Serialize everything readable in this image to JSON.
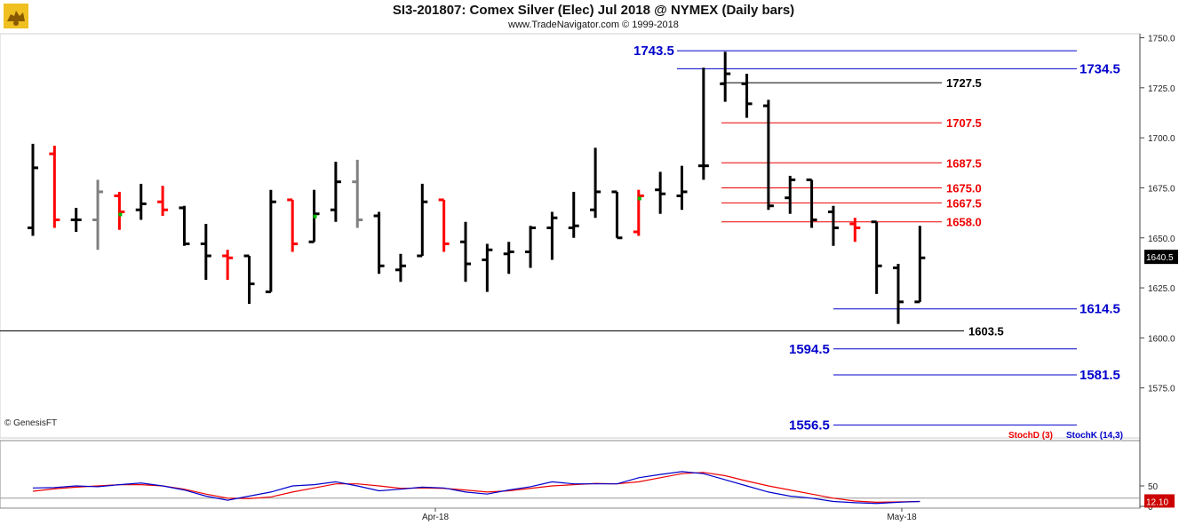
{
  "header": {
    "title": "SI3-201807:  Comex Silver (Elec) Jul 2018 @ NYMEX  (Daily bars)",
    "subtitle": "www.TradeNavigator.com © 1999-2018",
    "logo_icon": "bull-logo-icon"
  },
  "chart_data": [
    {
      "type": "ohlc",
      "ylim": [
        1550,
        1752
      ],
      "y_ticks": [
        "1750.0",
        "1725.0",
        "1700.0",
        "1675.0",
        "1650.0",
        "1625.0",
        "1600.0",
        "1575.0"
      ],
      "x_labels": [
        "Apr-18",
        "May-18"
      ],
      "last_price": "1640.5",
      "credit": "© GenesisFT",
      "colors": {
        "up": "#000000",
        "down": "#ff0000",
        "neutral": "#808080",
        "signal": "#00bb00"
      },
      "bars": [
        {
          "o": 1655,
          "h": 1697,
          "l": 1651,
          "c": 1685,
          "color": "#000000"
        },
        {
          "o": 1692,
          "h": 1696,
          "l": 1655,
          "c": 1659,
          "color": "#ff0000"
        },
        {
          "o": 1659,
          "h": 1665,
          "l": 1653,
          "c": 1659,
          "color": "#000000"
        },
        {
          "o": 1659,
          "h": 1679,
          "l": 1644,
          "c": 1673,
          "color": "#808080"
        },
        {
          "o": 1671,
          "h": 1673,
          "l": 1654,
          "c": 1663,
          "color": "#ff0000",
          "mark": "#00bb00"
        },
        {
          "o": 1664,
          "h": 1677,
          "l": 1659,
          "c": 1667,
          "color": "#000000"
        },
        {
          "o": 1668,
          "h": 1676,
          "l": 1661,
          "c": 1664,
          "color": "#ff0000"
        },
        {
          "o": 1665,
          "h": 1666,
          "l": 1646,
          "c": 1647,
          "color": "#000000"
        },
        {
          "o": 1647,
          "h": 1657,
          "l": 1629,
          "c": 1641,
          "color": "#000000"
        },
        {
          "o": 1641,
          "h": 1644,
          "l": 1629,
          "c": 1640,
          "color": "#ff0000"
        },
        {
          "o": 1641,
          "h": 1641,
          "l": 1617,
          "c": 1627,
          "color": "#000000"
        },
        {
          "o": 1623,
          "h": 1674,
          "l": 1623,
          "c": 1668,
          "color": "#000000"
        },
        {
          "o": 1669,
          "h": 1669,
          "l": 1643,
          "c": 1647,
          "color": "#ff0000"
        },
        {
          "o": 1648,
          "h": 1674,
          "l": 1648,
          "c": 1662,
          "color": "#000000",
          "mark": "#00bb00"
        },
        {
          "o": 1664,
          "h": 1688,
          "l": 1658,
          "c": 1678,
          "color": "#000000"
        },
        {
          "o": 1678,
          "h": 1689,
          "l": 1655,
          "c": 1659,
          "color": "#808080"
        },
        {
          "o": 1661,
          "h": 1663,
          "l": 1632,
          "c": 1636,
          "color": "#000000"
        },
        {
          "o": 1634,
          "h": 1642,
          "l": 1628,
          "c": 1636,
          "color": "#000000"
        },
        {
          "o": 1641,
          "h": 1677,
          "l": 1641,
          "c": 1668,
          "color": "#000000"
        },
        {
          "o": 1669,
          "h": 1669,
          "l": 1643,
          "c": 1647,
          "color": "#ff0000"
        },
        {
          "o": 1648,
          "h": 1658,
          "l": 1628,
          "c": 1637,
          "color": "#000000"
        },
        {
          "o": 1639,
          "h": 1647,
          "l": 1623,
          "c": 1644,
          "color": "#000000"
        },
        {
          "o": 1642,
          "h": 1648,
          "l": 1632,
          "c": 1643,
          "color": "#000000"
        },
        {
          "o": 1643,
          "h": 1656,
          "l": 1635,
          "c": 1655,
          "color": "#000000"
        },
        {
          "o": 1655,
          "h": 1663,
          "l": 1639,
          "c": 1660,
          "color": "#000000"
        },
        {
          "o": 1655,
          "h": 1673,
          "l": 1650,
          "c": 1656,
          "color": "#000000"
        },
        {
          "o": 1664,
          "h": 1695,
          "l": 1660,
          "c": 1673,
          "color": "#000000"
        },
        {
          "o": 1673,
          "h": 1673,
          "l": 1650,
          "c": 1650,
          "color": "#000000"
        },
        {
          "o": 1653,
          "h": 1674,
          "l": 1651,
          "c": 1671,
          "color": "#ff0000",
          "mark": "#00bb00"
        },
        {
          "o": 1674,
          "h": 1683,
          "l": 1662,
          "c": 1672,
          "color": "#000000"
        },
        {
          "o": 1671,
          "h": 1686,
          "l": 1664,
          "c": 1673,
          "color": "#000000"
        },
        {
          "o": 1686,
          "h": 1735,
          "l": 1679,
          "c": 1686,
          "color": "#000000"
        },
        {
          "o": 1727,
          "h": 1743,
          "l": 1718,
          "c": 1732,
          "color": "#000000"
        },
        {
          "o": 1727,
          "h": 1732,
          "l": 1710,
          "c": 1717,
          "color": "#000000"
        },
        {
          "o": 1716,
          "h": 1719,
          "l": 1664,
          "c": 1666,
          "color": "#000000"
        },
        {
          "o": 1670,
          "h": 1681,
          "l": 1662,
          "c": 1679,
          "color": "#000000"
        },
        {
          "o": 1679,
          "h": 1679,
          "l": 1655,
          "c": 1659,
          "color": "#000000"
        },
        {
          "o": 1663,
          "h": 1666,
          "l": 1646,
          "c": 1655,
          "color": "#000000"
        },
        {
          "o": 1657,
          "h": 1660,
          "l": 1648,
          "c": 1655,
          "color": "#ff0000"
        },
        {
          "o": 1658,
          "h": 1658,
          "l": 1622,
          "c": 1636,
          "color": "#000000"
        },
        {
          "o": 1635,
          "h": 1637,
          "l": 1607,
          "c": 1618,
          "color": "#000000"
        },
        {
          "o": 1618,
          "h": 1656,
          "l": 1618,
          "c": 1640,
          "color": "#000000"
        }
      ],
      "levels": [
        {
          "value": 1743.5,
          "label": "1743.5",
          "color": "#0000cc",
          "side": "left"
        },
        {
          "value": 1734.5,
          "label": "1734.5",
          "color": "#0000cc",
          "side": "right"
        },
        {
          "value": 1727.5,
          "label": "1727.5",
          "color": "#000000",
          "side": "mid"
        },
        {
          "value": 1707.5,
          "label": "1707.5",
          "color": "#ee0000",
          "side": "mid"
        },
        {
          "value": 1687.5,
          "label": "1687.5",
          "color": "#ee0000",
          "side": "mid"
        },
        {
          "value": 1675.0,
          "label": "1675.0",
          "color": "#ee0000",
          "side": "mid"
        },
        {
          "value": 1667.5,
          "label": "1667.5",
          "color": "#ee0000",
          "side": "mid"
        },
        {
          "value": 1658.0,
          "label": "1658.0",
          "color": "#ee0000",
          "side": "mid"
        },
        {
          "value": 1614.5,
          "label": "1614.5",
          "color": "#0000cc",
          "side": "right"
        },
        {
          "value": 1603.5,
          "label": "1603.5",
          "color": "#000000",
          "side": "mid2"
        },
        {
          "value": 1594.5,
          "label": "1594.5",
          "color": "#0000cc",
          "side": "left2"
        },
        {
          "value": 1581.5,
          "label": "1581.5",
          "color": "#0000cc",
          "side": "right"
        },
        {
          "value": 1556.5,
          "label": "1556.5",
          "color": "#0000cc",
          "side": "left2"
        }
      ]
    },
    {
      "type": "line",
      "title_d": "StochD (3)",
      "title_k": "StochK (14,3)",
      "ylim": [
        0,
        100
      ],
      "y_ticks": [
        "50",
        "0"
      ],
      "last_value": "12.10",
      "series": [
        {
          "name": "StochD (3)",
          "color": "#ee0000",
          "values": [
            37,
            43,
            47,
            50,
            53,
            53,
            50,
            42,
            30,
            20,
            19,
            23,
            35,
            45,
            55,
            55,
            50,
            44,
            45,
            44,
            40,
            35,
            38,
            44,
            50,
            53,
            56,
            55,
            60,
            70,
            80,
            83,
            75,
            62,
            50,
            40,
            30,
            20,
            13,
            10,
            11,
            12
          ]
        },
        {
          "name": "StochK (14,3)",
          "color": "#0000cc",
          "values": [
            45,
            46,
            50,
            48,
            53,
            57,
            50,
            40,
            25,
            15,
            25,
            35,
            50,
            53,
            60,
            50,
            38,
            42,
            47,
            45,
            35,
            30,
            40,
            48,
            60,
            55,
            55,
            55,
            70,
            78,
            85,
            80,
            65,
            50,
            35,
            25,
            20,
            12,
            9,
            7,
            10,
            12
          ]
        }
      ]
    }
  ]
}
